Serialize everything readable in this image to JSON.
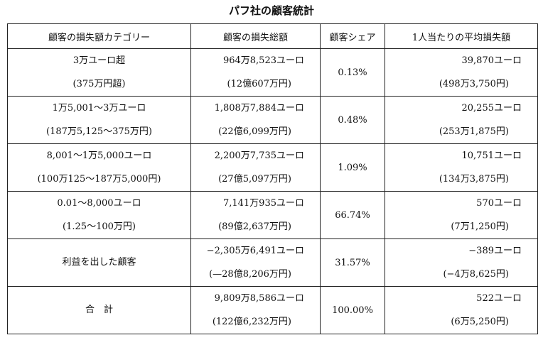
{
  "title": "パフ社の顧客統計",
  "headers": [
    "顧客の損失額カテゴリー",
    "顧客の損失総額",
    "顧客シェア",
    "1人当たりの平均損失額"
  ],
  "rows": [
    {
      "cat1": "3万ユーロ超",
      "cat2": "(375万円超)",
      "total1": "964万8,523ユーロ",
      "total2": "(12億607万円)",
      "share": "0.13%",
      "avg1": "39,870ユーロ",
      "avg2": "(498万3,750円)"
    },
    {
      "cat1": "1万5,001〜3万ユーロ",
      "cat2": "(187万5,125〜375万円)",
      "total1": "1,808万7,884ユーロ",
      "total2": "(22億6,099万円)",
      "share": "0.48%",
      "avg1": "20,255ユーロ",
      "avg2": "(253万1,875円)"
    },
    {
      "cat1": "8,001〜1万5,000ユーロ",
      "cat2": "(100万125〜187万5,000円)",
      "total1": "2,200万7,735ユーロ",
      "total2": "(27億5,097万円)",
      "share": "1.09%",
      "avg1": "10,751ユーロ",
      "avg2": "(134万3,875円)"
    },
    {
      "cat1": "0.01〜8,000ユーロ",
      "cat2": "(1.25〜100万円)",
      "total1": "7,141万935ユーロ",
      "total2": "(89億2,637万円)",
      "share": "66.74%",
      "avg1": "570ユーロ",
      "avg2": "(7万1,250円)"
    },
    {
      "cat1": "利益を出した顧客",
      "cat2": "",
      "total1": "−2,305万6,491ユーロ",
      "total2": "(—28億8,206万円)",
      "share": "31.57%",
      "avg1": "−389ユーロ",
      "avg2": "(−4万8,625円)"
    },
    {
      "cat1": "合　計",
      "cat2": "",
      "total1": "9,809万8,586ユーロ",
      "total2": "(122億6,232万円)",
      "share": "100.00%",
      "avg1": "522ユーロ",
      "avg2": "(6万5,250円)"
    }
  ]
}
